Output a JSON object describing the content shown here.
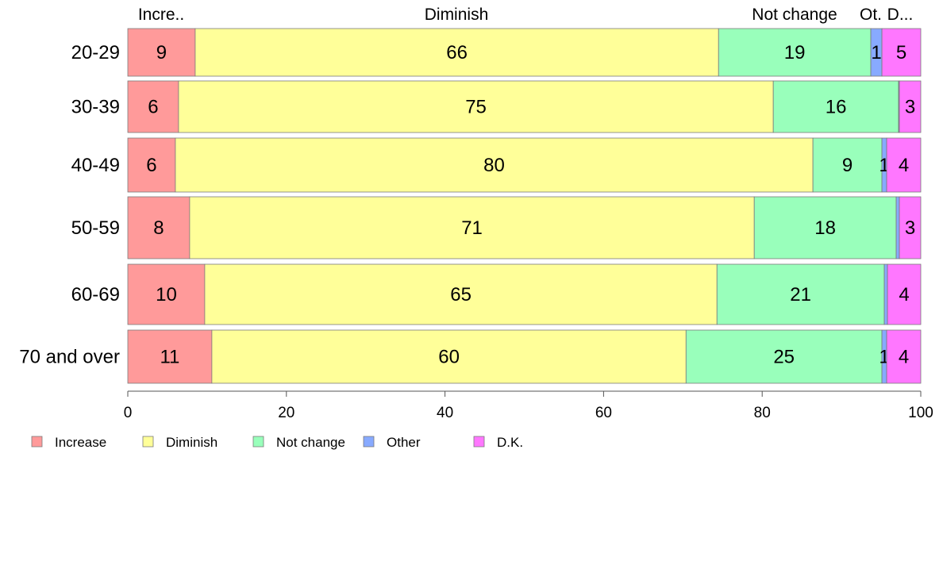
{
  "chart_data": {
    "type": "bar",
    "orientation": "horizontal",
    "stacked": true,
    "categories": [
      "20-29",
      "30-39",
      "40-49",
      "50-59",
      "60-69",
      "70 and over"
    ],
    "series": [
      {
        "name": "Increase",
        "color": "#ff9a9a",
        "values": [
          8.5,
          6.4,
          6.0,
          7.8,
          9.7,
          10.6
        ],
        "labels": [
          "9",
          "6",
          "6",
          "8",
          "10",
          "11"
        ]
      },
      {
        "name": "Diminish",
        "color": "#ffff99",
        "values": [
          66.0,
          75.0,
          80.4,
          71.2,
          64.6,
          59.8
        ],
        "labels": [
          "66",
          "75",
          "80",
          "71",
          "65",
          "60"
        ]
      },
      {
        "name": "Not change",
        "color": "#99ffbb",
        "values": [
          19.2,
          15.8,
          8.7,
          17.9,
          21.1,
          24.7
        ],
        "labels": [
          "19",
          "16",
          "9",
          "18",
          "21",
          "25"
        ]
      },
      {
        "name": "Other",
        "color": "#88aaff",
        "values": [
          1.4,
          0.1,
          0.6,
          0.4,
          0.4,
          0.6
        ],
        "labels": [
          "1",
          "",
          "1",
          "",
          "",
          "1"
        ]
      },
      {
        "name": "D.K.",
        "color": "#ff77ff",
        "values": [
          4.9,
          2.7,
          4.3,
          2.7,
          4.2,
          4.3
        ],
        "labels": [
          "5",
          "3",
          "4",
          "3",
          "4",
          "4"
        ]
      }
    ],
    "top_labels": [
      "Incre..",
      "Diminish",
      "Not change",
      "Ot.",
      "D..."
    ],
    "xlim": [
      0,
      100
    ],
    "xticks": [
      0,
      20,
      40,
      60,
      80,
      100
    ],
    "title": "",
    "xlabel": "",
    "ylabel": "",
    "grid": false,
    "legend_position": "bottom-left"
  }
}
